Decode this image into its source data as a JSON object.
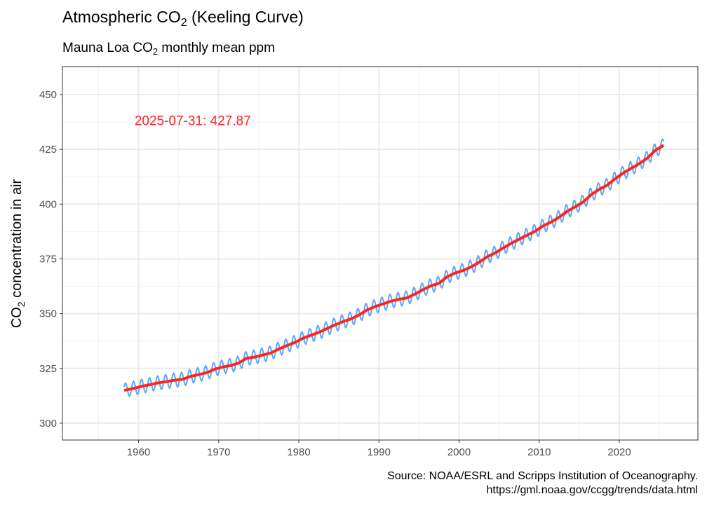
{
  "chart_data": {
    "type": "line",
    "title": {
      "pre": "Atmospheric CO",
      "sub": "2",
      "post": " (Keeling Curve)"
    },
    "subtitle": {
      "pre": "Mauna Loa CO",
      "sub": "2",
      "post": " monthly mean ppm"
    },
    "ylabel": {
      "pre": "CO",
      "sub": "2",
      "post": " concentration in air"
    },
    "xlabel": "",
    "caption_lines": [
      "Source: NOAA/ESRL and Scripps Institution of Oceanography.",
      "https://gml.noaa.gov/ccgg/trends/data.html"
    ],
    "annotation": {
      "text": "2025-07-31: 427.87",
      "x": 1959.5,
      "y": 438,
      "color": "#ff2020"
    },
    "xlim": [
      1950.5,
      2029.8
    ],
    "ylim": [
      292.3,
      462.8
    ],
    "x_ticks": [
      1960,
      1970,
      1980,
      1990,
      2000,
      2010,
      2020
    ],
    "y_ticks": [
      300,
      325,
      350,
      375,
      400,
      425,
      450
    ],
    "grid": true,
    "x_start": 1958.2,
    "x_end": 2025.58,
    "seasonal_amplitude_ppm": 3.2,
    "series": [
      {
        "kind": "monthly",
        "color": "#5ea8f0"
      },
      {
        "kind": "trend",
        "color": "#ff2424"
      }
    ],
    "annual_mean": {
      "years": [
        1958,
        1959,
        1960,
        1961,
        1962,
        1963,
        1964,
        1965,
        1966,
        1967,
        1968,
        1969,
        1970,
        1971,
        1972,
        1973,
        1974,
        1975,
        1976,
        1977,
        1978,
        1979,
        1980,
        1981,
        1982,
        1983,
        1984,
        1985,
        1986,
        1987,
        1988,
        1989,
        1990,
        1991,
        1992,
        1993,
        1994,
        1995,
        1996,
        1997,
        1998,
        1999,
        2000,
        2001,
        2002,
        2003,
        2004,
        2005,
        2006,
        2007,
        2008,
        2009,
        2010,
        2011,
        2012,
        2013,
        2014,
        2015,
        2016,
        2017,
        2018,
        2019,
        2020,
        2021,
        2022,
        2023,
        2024,
        2025
      ],
      "ppm": [
        315.2,
        315.98,
        316.91,
        317.64,
        318.45,
        318.99,
        319.62,
        320.04,
        321.37,
        322.18,
        323.05,
        324.62,
        325.68,
        326.32,
        327.46,
        329.68,
        330.19,
        331.13,
        332.03,
        333.84,
        335.41,
        336.84,
        338.76,
        340.12,
        341.48,
        343.15,
        344.87,
        346.35,
        347.61,
        349.31,
        351.69,
        353.2,
        354.45,
        355.7,
        356.54,
        357.21,
        358.96,
        360.97,
        362.74,
        363.88,
        366.84,
        368.54,
        369.71,
        371.32,
        373.45,
        375.98,
        377.7,
        379.98,
        382.09,
        384.02,
        385.83,
        387.64,
        390.1,
        391.85,
        394.06,
        396.74,
        398.81,
        401.01,
        404.41,
        406.76,
        408.72,
        411.65,
        414.21,
        416.41,
        418.53,
        421.08,
        424.61,
        426.8
      ]
    }
  }
}
